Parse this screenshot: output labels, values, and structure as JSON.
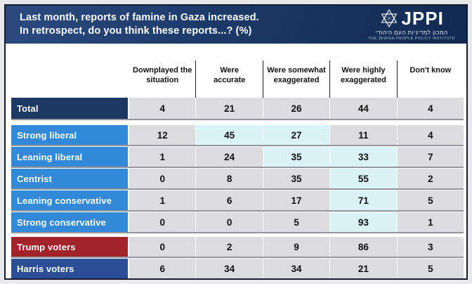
{
  "header": {
    "title_line1": "Last month, reports of famine in Gaza increased.",
    "title_line2": "In retrospect, do you think these reports...? (%)",
    "logo": {
      "acronym": "JPPI",
      "hebrew": "המכון למדיניות העם היהודי",
      "english": "THE JEWISH PEOPLE POLICY INSTITUTE"
    }
  },
  "chart_data": {
    "type": "table",
    "title": "Last month, reports of famine in Gaza increased. In retrospect, do you think these reports...? (%)",
    "columns": [
      "Downplayed the\nsituation",
      "Were\naccurate",
      "Were somewhat\nexaggerated",
      "Were highly\nexaggerated",
      "Don't know"
    ],
    "rows": [
      {
        "label": "Total",
        "group": "total",
        "values": [
          4,
          21,
          26,
          44,
          4
        ],
        "highlighted_columns": []
      },
      {
        "label": "Strong liberal",
        "group": "ideology",
        "values": [
          12,
          45,
          27,
          11,
          4
        ],
        "highlighted_columns": [
          1,
          2
        ]
      },
      {
        "label": "Leaning liberal",
        "group": "ideology",
        "values": [
          1,
          24,
          35,
          33,
          7
        ],
        "highlighted_columns": [
          2,
          3
        ]
      },
      {
        "label": "Centrist",
        "group": "ideology",
        "values": [
          0,
          8,
          35,
          55,
          2
        ],
        "highlighted_columns": [
          3
        ]
      },
      {
        "label": "Leaning conservative",
        "group": "ideology",
        "values": [
          1,
          6,
          17,
          71,
          5
        ],
        "highlighted_columns": [
          3
        ]
      },
      {
        "label": "Strong conservative",
        "group": "ideology",
        "values": [
          0,
          0,
          5,
          93,
          1
        ],
        "highlighted_columns": [
          3
        ]
      },
      {
        "label": "Trump voters",
        "group": "voters-trump",
        "values": [
          0,
          2,
          9,
          86,
          3
        ],
        "highlighted_columns": []
      },
      {
        "label": "Harris voters",
        "group": "voters-harris",
        "values": [
          6,
          34,
          34,
          21,
          5
        ],
        "highlighted_columns": []
      }
    ]
  },
  "colors": {
    "banner_navy": "#1c3a68",
    "total_navy": "#1e3864",
    "ideology_blue": "#3389d9",
    "trump_red": "#a22329",
    "harris_blue": "#2b4e97",
    "cell_gray": "#dcdcde",
    "highlight_cyan": "#d9f3f7",
    "row_shadow": "#95959b"
  }
}
